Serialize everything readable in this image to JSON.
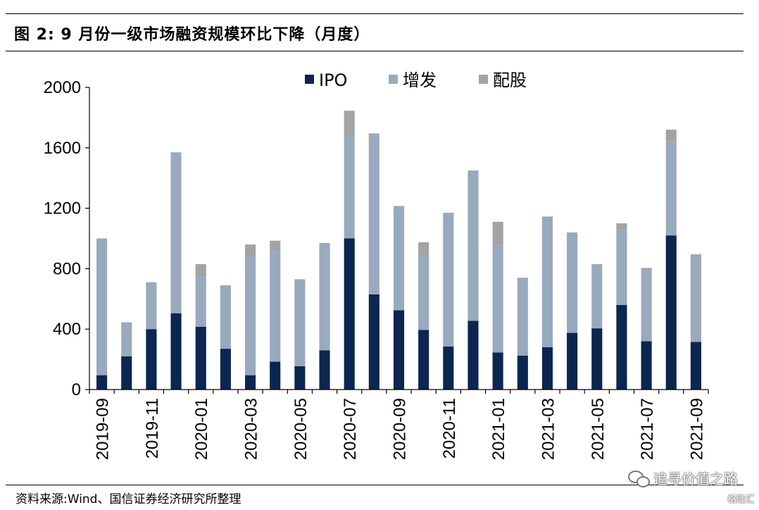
{
  "header": {
    "title": "图 2:  9 月份一级市场融资规模环比下降（月度）"
  },
  "footer": {
    "source": "资料来源:Wind、国信证券经济研究所整理",
    "watermark": "追寻价值之路",
    "badge": "格隆汇"
  },
  "chart_data": {
    "type": "bar",
    "stacked": true,
    "categories": [
      "2019-09",
      "2019-10",
      "2019-11",
      "2019-12",
      "2020-01",
      "2020-02",
      "2020-03",
      "2020-04",
      "2020-05",
      "2020-06",
      "2020-07",
      "2020-08",
      "2020-09",
      "2020-10",
      "2020-11",
      "2020-12",
      "2021-01",
      "2021-02",
      "2021-03",
      "2021-04",
      "2021-05",
      "2021-06",
      "2021-07",
      "2021-08",
      "2021-09"
    ],
    "tick_labels": [
      "2019-09",
      "2019-11",
      "2020-01",
      "2020-03",
      "2020-05",
      "2020-07",
      "2020-09",
      "2020-11",
      "2021-01",
      "2021-03",
      "2021-05",
      "2021-07",
      "2021-09"
    ],
    "series": [
      {
        "name": "IPO",
        "color": "#0b2650",
        "values": [
          95,
          220,
          400,
          505,
          415,
          270,
          95,
          185,
          155,
          260,
          1000,
          630,
          525,
          395,
          285,
          455,
          245,
          225,
          280,
          375,
          405,
          560,
          320,
          1020,
          315
        ]
      },
      {
        "name": "增发",
        "color": "#99a9be",
        "values": [
          905,
          225,
          310,
          1065,
          335,
          420,
          785,
          730,
          575,
          710,
          675,
          1050,
          685,
          490,
          885,
          995,
          715,
          515,
          865,
          665,
          420,
          500,
          470,
          625,
          580
        ]
      },
      {
        "name": "配股",
        "color": "#a3a3a3",
        "values": [
          0,
          0,
          0,
          0,
          80,
          0,
          80,
          70,
          0,
          0,
          170,
          15,
          5,
          90,
          0,
          0,
          150,
          0,
          0,
          0,
          5,
          40,
          15,
          75,
          0
        ]
      }
    ],
    "ylim": [
      0,
      2000
    ],
    "yticks": [
      0,
      400,
      800,
      1200,
      1600,
      2000
    ],
    "legend_position": "top-center",
    "grid": false
  }
}
